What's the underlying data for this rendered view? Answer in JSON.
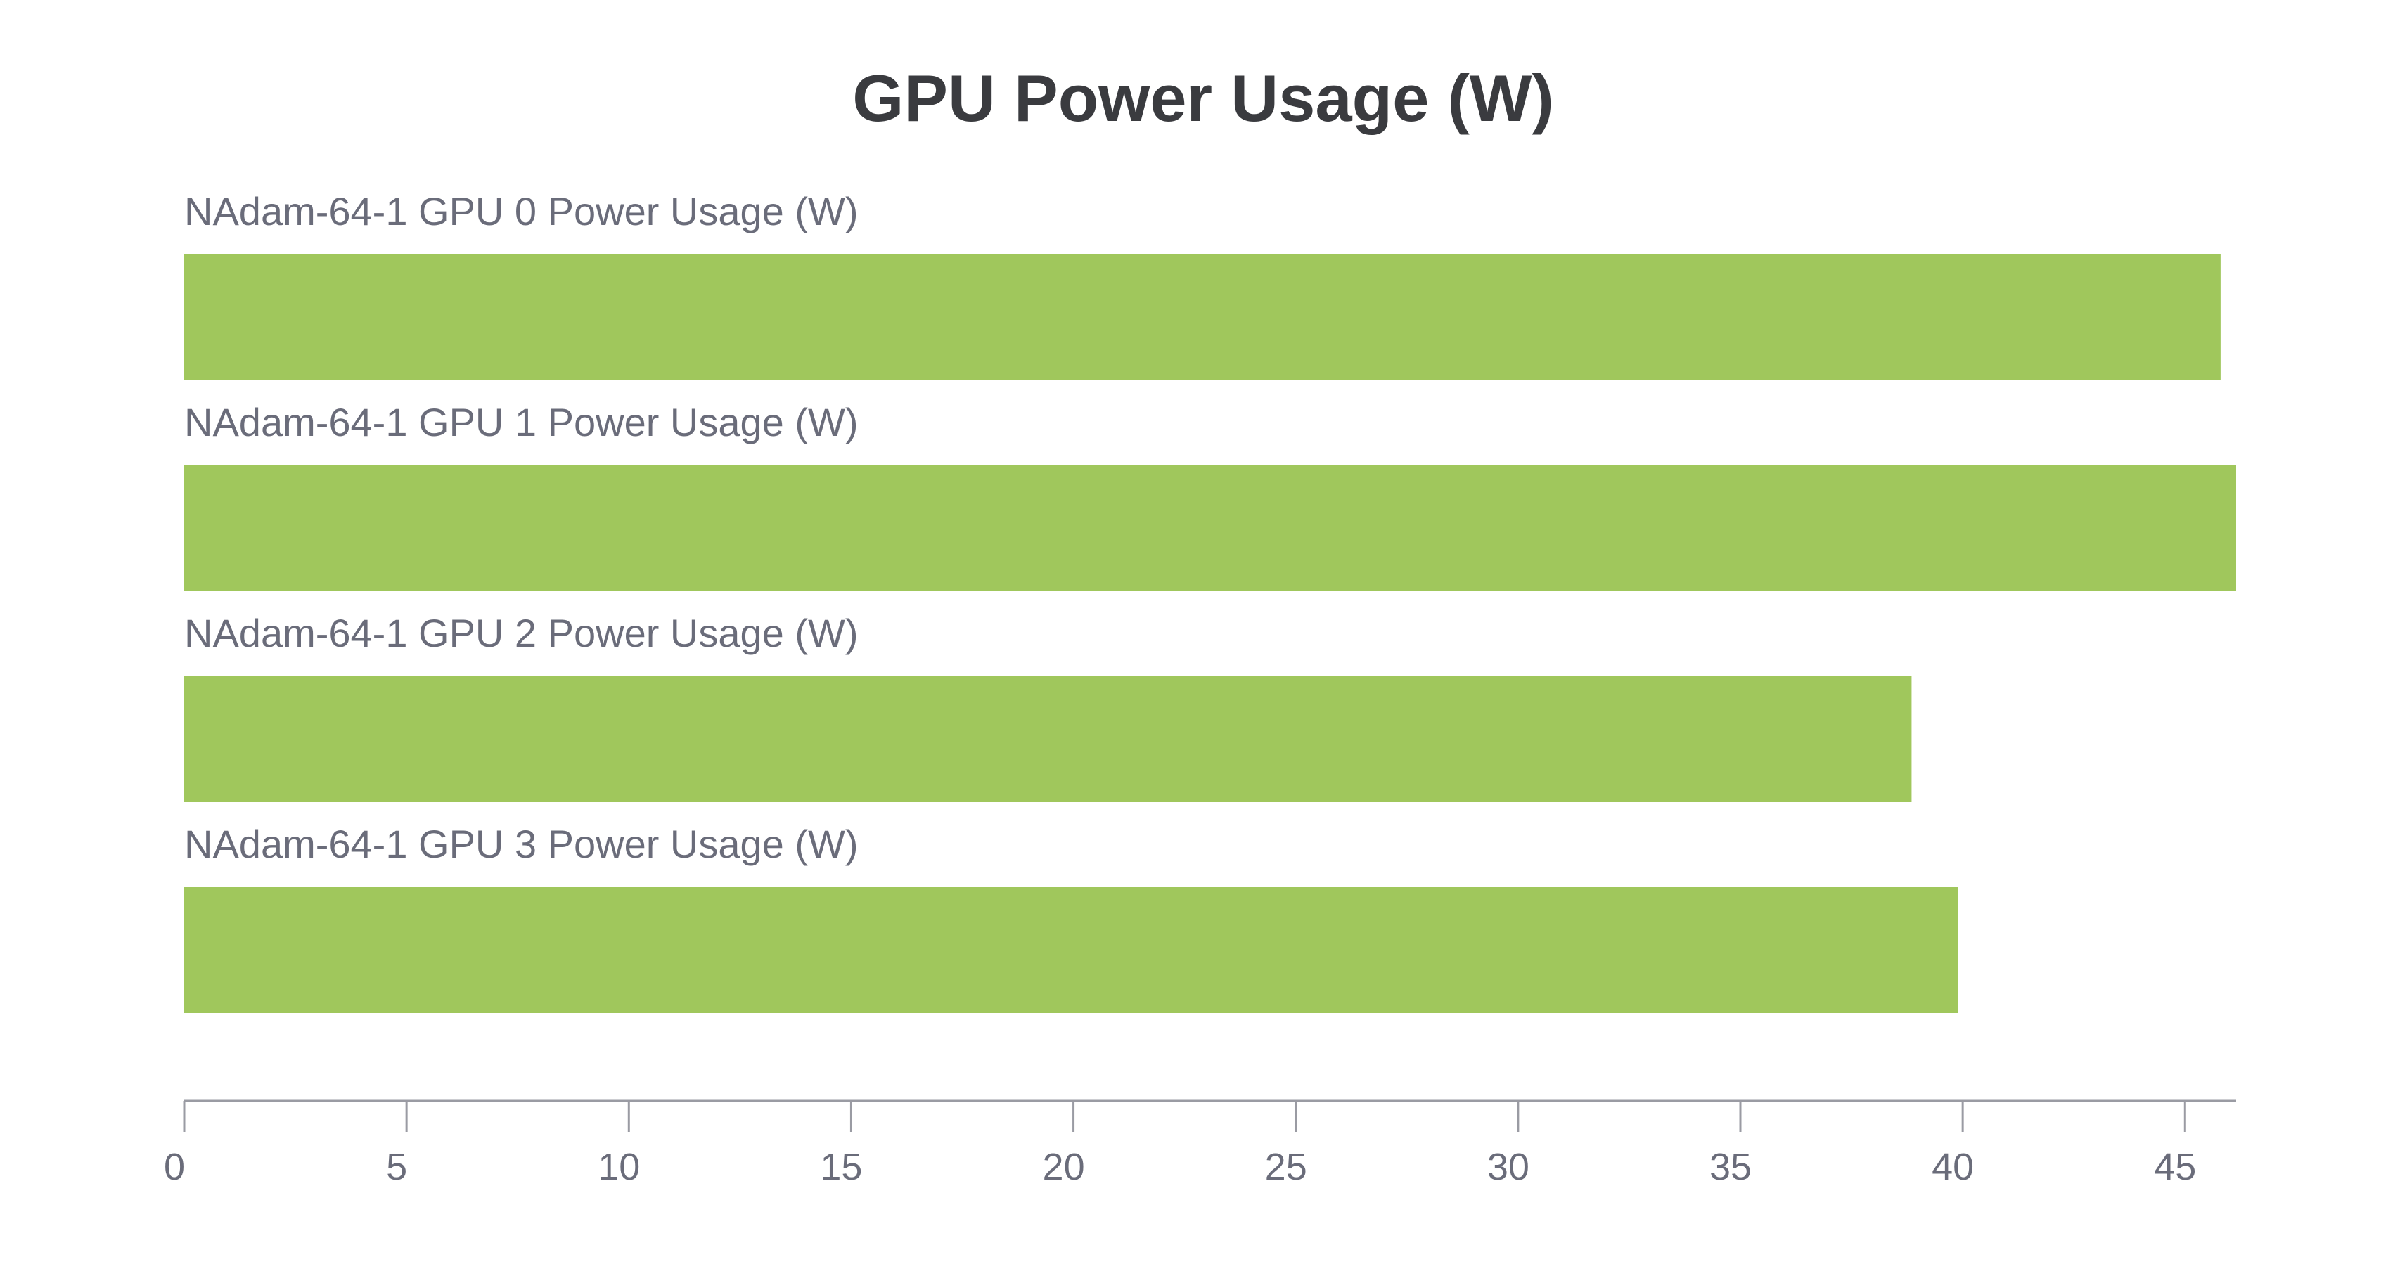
{
  "chart_data": {
    "type": "bar",
    "orientation": "horizontal",
    "title": "GPU Power Usage (W)",
    "categories": [
      "NAdam-64-1 GPU 0 Power Usage (W)",
      "NAdam-64-1 GPU 1 Power Usage (W)",
      "NAdam-64-1 GPU 2 Power Usage (W)",
      "NAdam-64-1 GPU 3 Power Usage (W)"
    ],
    "values": [
      45.8,
      46.15,
      38.85,
      39.9
    ],
    "xlim": [
      0,
      46.15
    ],
    "xticks": [
      0,
      5,
      10,
      15,
      20,
      25,
      30,
      35,
      40,
      45
    ],
    "xlabel": "",
    "ylabel": "",
    "grid": false,
    "legend": "none",
    "colors": {
      "bar": "#a0c75c",
      "axis": "#9a9ba3",
      "text": "#6a6c7a",
      "title": "#3a3b3f"
    }
  }
}
